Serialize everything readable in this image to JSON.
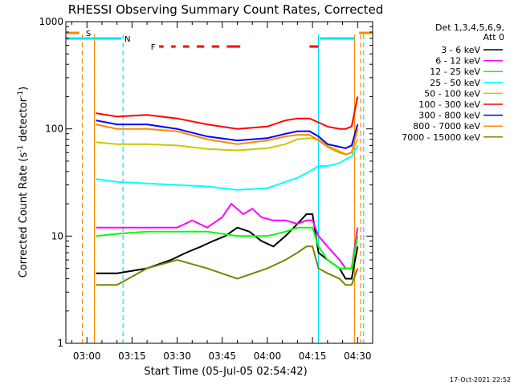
{
  "chart_data": {
    "type": "line",
    "title": "RHESSI Observing Summary Count Rates, Corrected",
    "xlabel": "Start Time (05-Jul-05 02:54:42)",
    "ylabel": "Corrected Count Rate (s⁻¹ detector⁻¹)",
    "ylabel_parts": {
      "main": "Corrected Count Rate (s",
      "sup1": "-1",
      "mid": " detector",
      "sup2": "-1",
      "end": ")"
    },
    "footer_date": "17-Oct-2021 22:52",
    "y_scale": "log",
    "ylim": [
      1,
      1000
    ],
    "xlim_minutes": [
      -7,
      95
    ],
    "x_tick_labels": [
      {
        "label": "03:00",
        "minute": 0
      },
      {
        "label": "03:15",
        "minute": 15
      },
      {
        "label": "03:30",
        "minute": 30
      },
      {
        "label": "03:45",
        "minute": 45
      },
      {
        "label": "04:00",
        "minute": 60
      },
      {
        "label": "04:15",
        "minute": 75
      },
      {
        "label": "04:30",
        "minute": 90
      }
    ],
    "y_tick_labels": [
      {
        "label": "1",
        "value": 1
      },
      {
        "label": "10",
        "value": 10
      },
      {
        "label": "100",
        "value": 100
      },
      {
        "label": "1000",
        "value": 1000
      }
    ],
    "legend_header": [
      "Det 1,3,4,5,6,9,",
      "Att 0"
    ],
    "legend_position": "top-right, outside plot",
    "series": [
      {
        "name": "3 - 6 keV",
        "color": "#000000",
        "x": [
          3,
          10,
          20,
          28,
          33,
          38,
          42,
          46,
          50,
          54,
          58,
          62,
          66,
          70,
          73,
          75,
          77,
          80,
          84,
          86,
          88,
          90
        ],
        "y": [
          4.5,
          4.5,
          5,
          6,
          7,
          8,
          9,
          10,
          12,
          11,
          9,
          8,
          10,
          13,
          16,
          16,
          7,
          6,
          5,
          4,
          4,
          8
        ]
      },
      {
        "name": "6 - 12 keV",
        "color": "#ff00ff",
        "x": [
          3,
          10,
          20,
          30,
          35,
          40,
          45,
          48,
          52,
          55,
          58,
          62,
          66,
          70,
          73,
          75,
          77,
          80,
          84,
          86,
          88,
          90
        ],
        "y": [
          12,
          12,
          12,
          12,
          14,
          12,
          15,
          20,
          16,
          18,
          15,
          14,
          14,
          13,
          14,
          14,
          10,
          8,
          6,
          5,
          5,
          12
        ]
      },
      {
        "name": "12 - 25 keV",
        "color": "#00ff00",
        "x": [
          3,
          10,
          20,
          30,
          40,
          50,
          60,
          66,
          70,
          73,
          75,
          77,
          80,
          84,
          86,
          88,
          90
        ],
        "y": [
          10,
          10.5,
          11,
          11,
          11,
          10,
          10,
          11,
          12,
          12,
          12,
          8,
          6,
          5,
          5,
          5,
          10
        ]
      },
      {
        "name": "25 - 50 keV",
        "color": "#00ffff",
        "x": [
          3,
          10,
          20,
          30,
          40,
          50,
          60,
          66,
          70,
          74,
          77,
          80,
          84,
          86,
          88,
          90
        ],
        "y": [
          34,
          32,
          31,
          30,
          29,
          27,
          28,
          32,
          35,
          40,
          45,
          45,
          48,
          52,
          55,
          70
        ]
      },
      {
        "name": "50 - 100 keV",
        "color": "#c8c800",
        "x": [
          3,
          10,
          20,
          30,
          40,
          50,
          60,
          66,
          70,
          74,
          77,
          80,
          84,
          86,
          88,
          90
        ],
        "y": [
          75,
          72,
          72,
          70,
          65,
          63,
          66,
          72,
          80,
          82,
          80,
          70,
          62,
          58,
          60,
          80
        ]
      },
      {
        "name": "100 - 300 keV",
        "color": "#ff0000",
        "x": [
          3,
          10,
          20,
          30,
          40,
          50,
          60,
          66,
          70,
          74,
          77,
          80,
          84,
          86,
          88,
          90
        ],
        "y": [
          140,
          130,
          135,
          125,
          110,
          100,
          105,
          120,
          125,
          125,
          115,
          105,
          100,
          100,
          105,
          200
        ]
      },
      {
        "name": "300 - 800 keV",
        "color": "#0000ff",
        "x": [
          3,
          10,
          20,
          30,
          40,
          50,
          60,
          66,
          70,
          74,
          77,
          80,
          84,
          86,
          88,
          90
        ],
        "y": [
          120,
          110,
          110,
          100,
          85,
          78,
          82,
          90,
          95,
          95,
          85,
          72,
          68,
          66,
          70,
          110
        ]
      },
      {
        "name": "800 - 7000 keV",
        "color": "#ff8800",
        "x": [
          3,
          10,
          20,
          30,
          40,
          50,
          60,
          66,
          70,
          74,
          77,
          80,
          84,
          86,
          88,
          90
        ],
        "y": [
          110,
          100,
          100,
          95,
          80,
          72,
          78,
          85,
          88,
          88,
          78,
          68,
          60,
          58,
          60,
          100
        ]
      },
      {
        "name": "7000 - 15000 keV",
        "color": "#808000",
        "x": [
          3,
          10,
          20,
          30,
          40,
          50,
          60,
          66,
          70,
          73,
          75,
          77,
          80,
          84,
          86,
          88,
          90
        ],
        "y": [
          3.5,
          3.5,
          5,
          6,
          5,
          4,
          5,
          6,
          7,
          8,
          8,
          5,
          4.5,
          4,
          3.5,
          3.5,
          5
        ]
      }
    ],
    "flags": [
      {
        "label": "S",
        "color": "#ff8800",
        "minute": 0.5,
        "segments_minutes": [
          [
            -7,
            -2.5
          ],
          [
            90.5,
            95
          ]
        ]
      },
      {
        "label": "N",
        "color": "#00e0ff",
        "minute": 13.5,
        "segments_minutes": [
          [
            -7,
            11.5
          ],
          [
            77.5,
            89
          ]
        ]
      },
      {
        "label": "F",
        "color": "#ff0000",
        "minute": 22,
        "segments_minutes": [
          [
            24,
            25.5
          ],
          [
            28,
            29.5
          ],
          [
            32,
            34
          ],
          [
            36.5,
            39
          ],
          [
            41.5,
            44
          ],
          [
            46.5,
            51
          ],
          [
            74,
            77
          ]
        ]
      }
    ],
    "vertical_markers": [
      {
        "minute": -1.5,
        "color": "#ff8800",
        "dashed": true
      },
      {
        "minute": 12,
        "color": "#00e0ff",
        "dashed": true
      },
      {
        "minute": 2.5,
        "color": "#ff8800",
        "dashed": false
      },
      {
        "minute": 77,
        "color": "#00e0ff",
        "dashed": false
      },
      {
        "minute": 89,
        "color": "#ff8800",
        "dashed": false
      },
      {
        "minute": 91,
        "color": "#ff8800",
        "dashed": true
      },
      {
        "minute": 92,
        "color": "#00e0ff",
        "dashed": true
      }
    ],
    "grid": false
  }
}
